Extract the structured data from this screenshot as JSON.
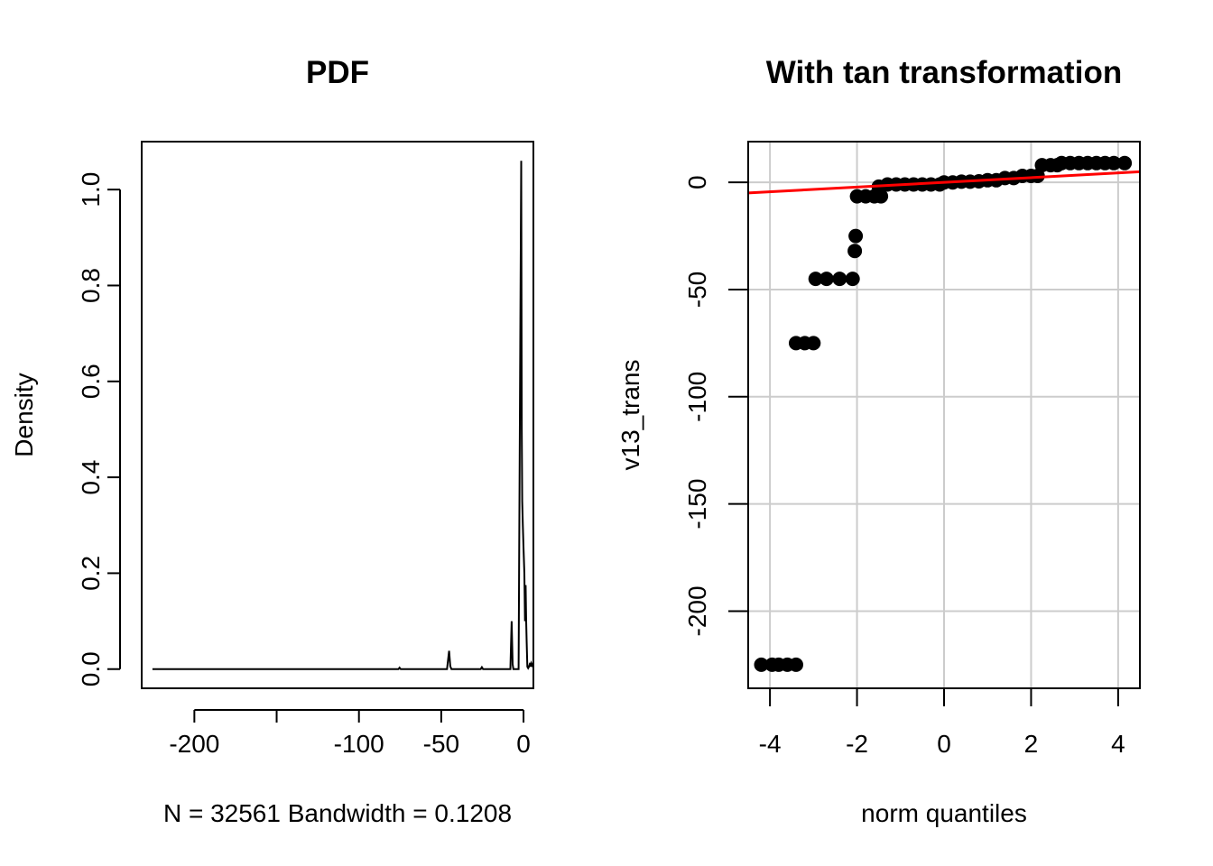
{
  "colors": {
    "background": "#ffffff",
    "axis": "#000000",
    "density_line": "#000000",
    "qq_points": "#000000",
    "qq_line": "#ff0000",
    "grid": "#cccccc"
  },
  "chart_data": [
    {
      "type": "line",
      "title": "PDF",
      "xlabel": "N = 32561   Bandwidth = 0.1208",
      "ylabel": "Density",
      "grid": false,
      "xlim": [
        -232,
        6
      ],
      "ylim": [
        -0.04,
        1.1
      ],
      "xticks": [
        -200,
        -150,
        -100,
        -50,
        0
      ],
      "xtick_labels": [
        "-200",
        "",
        "-100",
        "-50",
        "0"
      ],
      "yticks": [
        0.0,
        0.2,
        0.4,
        0.6,
        0.8,
        1.0
      ],
      "ytick_labels": [
        "0.0",
        "0.2",
        "0.4",
        "0.6",
        "0.8",
        "1.0"
      ],
      "series": [
        {
          "x": [
            -225.5,
            -200,
            -150,
            -100,
            -76,
            -75.3,
            -74.6,
            -60,
            -46.5,
            -45.2,
            -44.5,
            -43.8,
            -30,
            -26,
            -25.3,
            -24.6,
            -8,
            -7.2,
            -6.6,
            -6.2,
            -5.6,
            -3,
            -1.4,
            -1.1,
            -0.8,
            -0.4,
            0,
            0.5,
            0.9,
            1.3,
            1.6,
            1.9,
            2.3,
            2.8,
            3.3,
            4.0,
            4.4,
            4.8,
            5.3,
            5.7,
            6.0
          ],
          "y": [
            0,
            0,
            0,
            0,
            0,
            0.003,
            0,
            0,
            0,
            0.038,
            0.006,
            0,
            0,
            0,
            0.004,
            0,
            0,
            0.1,
            0.01,
            0,
            0,
            0,
            1.06,
            0.5,
            0.35,
            0.3,
            0.25,
            0.2,
            0.1,
            0.175,
            0.1,
            0.06,
            0.005,
            0.002,
            0.005,
            0.013,
            0.005,
            0.012,
            0.008,
            0.012,
            0.005
          ]
        }
      ]
    },
    {
      "type": "scatter",
      "title": "With tan transformation",
      "xlabel": "norm quantiles",
      "ylabel": "v13_trans",
      "grid": true,
      "xlim": [
        -4.5,
        4.5
      ],
      "ylim": [
        -236,
        19
      ],
      "xticks": [
        -4,
        -2,
        0,
        2,
        4
      ],
      "xtick_labels": [
        "-4",
        "-2",
        "0",
        "2",
        "4"
      ],
      "yticks": [
        0,
        -50,
        -100,
        -150,
        -200
      ],
      "ytick_labels": [
        "0",
        "-50",
        "-100",
        "-150",
        "-200"
      ],
      "series": [
        {
          "points": [
            [
              -4.2,
              -225
            ],
            [
              -3.95,
              -225
            ],
            [
              -3.8,
              -225
            ],
            [
              -3.6,
              -225
            ],
            [
              -3.4,
              -225
            ],
            [
              -3.4,
              -75
            ],
            [
              -3.2,
              -75
            ],
            [
              -3.0,
              -75
            ],
            [
              -2.95,
              -45
            ],
            [
              -2.7,
              -45
            ],
            [
              -2.4,
              -45
            ],
            [
              -2.1,
              -45
            ],
            [
              -2.05,
              -32
            ],
            [
              -2.03,
              -25
            ],
            [
              -2.0,
              -6.5
            ],
            [
              -1.8,
              -6.5
            ],
            [
              -1.6,
              -6.5
            ],
            [
              -1.45,
              -6.5
            ],
            [
              -1.5,
              -2
            ],
            [
              -1.3,
              -1
            ],
            [
              -1.1,
              -1
            ],
            [
              -0.9,
              -1
            ],
            [
              -0.7,
              -1
            ],
            [
              -0.5,
              -1
            ],
            [
              -0.3,
              -1
            ],
            [
              -0.1,
              -1
            ],
            [
              0,
              0
            ],
            [
              0.2,
              0
            ],
            [
              0.4,
              0.3
            ],
            [
              0.6,
              0.3
            ],
            [
              0.8,
              0.5
            ],
            [
              1.0,
              1
            ],
            [
              1.2,
              1
            ],
            [
              1.4,
              2
            ],
            [
              1.6,
              2
            ],
            [
              1.8,
              3
            ],
            [
              2.0,
              3
            ],
            [
              2.15,
              3
            ],
            [
              2.25,
              8
            ],
            [
              2.45,
              8
            ],
            [
              2.6,
              8
            ],
            [
              2.7,
              9
            ],
            [
              2.9,
              9
            ],
            [
              3.1,
              9
            ],
            [
              3.3,
              9
            ],
            [
              3.5,
              9
            ],
            [
              3.7,
              9
            ],
            [
              3.9,
              9
            ],
            [
              4.15,
              9
            ]
          ]
        }
      ],
      "reference_line": {
        "slope": 1.1,
        "intercept": 0
      }
    }
  ]
}
